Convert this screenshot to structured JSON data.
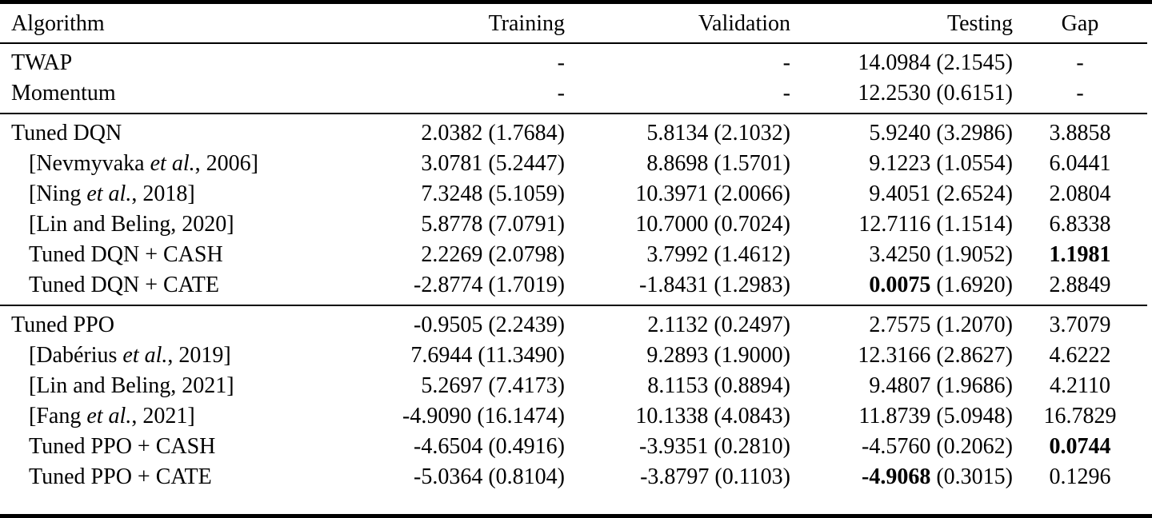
{
  "table": {
    "columns": [
      "Algorithm",
      "Training",
      "Validation",
      "Testing",
      "Gap"
    ],
    "italic_marker": "et al.",
    "sections": [
      {
        "name": "baselines",
        "rows": [
          {
            "label": "TWAP",
            "indent": false,
            "training": {
              "mean": "-"
            },
            "validation": {
              "mean": "-"
            },
            "testing": {
              "mean": "14.0984",
              "std": "2.1545"
            },
            "gap": {
              "value": "-"
            }
          },
          {
            "label": "Momentum",
            "indent": false,
            "training": {
              "mean": "-"
            },
            "validation": {
              "mean": "-"
            },
            "testing": {
              "mean": "12.2530",
              "std": "0.6151"
            },
            "gap": {
              "value": "-"
            }
          }
        ]
      },
      {
        "name": "dqn",
        "rows": [
          {
            "label": "Tuned DQN",
            "indent": false,
            "training": {
              "mean": "2.0382",
              "std": "1.7684"
            },
            "validation": {
              "mean": "5.8134",
              "std": "2.1032"
            },
            "testing": {
              "mean": "5.9240",
              "std": "3.2986"
            },
            "gap": {
              "value": "3.8858"
            }
          },
          {
            "label": "[Nevmyvaka et al., 2006]",
            "italic": true,
            "indent": true,
            "training": {
              "mean": "3.0781",
              "std": "5.2447"
            },
            "validation": {
              "mean": "8.8698",
              "std": "1.5701"
            },
            "testing": {
              "mean": "9.1223",
              "std": "1.0554"
            },
            "gap": {
              "value": "6.0441"
            }
          },
          {
            "label": "[Ning et al., 2018]",
            "italic": true,
            "indent": true,
            "training": {
              "mean": "7.3248",
              "std": "5.1059"
            },
            "validation": {
              "mean": "10.3971",
              "std": "2.0066"
            },
            "testing": {
              "mean": "9.4051",
              "std": "2.6524"
            },
            "gap": {
              "value": "2.0804"
            }
          },
          {
            "label": "[Lin and Beling, 2020]",
            "indent": true,
            "training": {
              "mean": "5.8778",
              "std": "7.0791"
            },
            "validation": {
              "mean": "10.7000",
              "std": "0.7024"
            },
            "testing": {
              "mean": "12.7116",
              "std": "1.1514"
            },
            "gap": {
              "value": "6.8338"
            }
          },
          {
            "label": "Tuned DQN + CASH",
            "indent": true,
            "training": {
              "mean": "2.2269",
              "std": "2.0798"
            },
            "validation": {
              "mean": "3.7992",
              "std": "1.4612"
            },
            "testing": {
              "mean": "3.4250",
              "std": "1.9052"
            },
            "gap": {
              "value": "1.1981",
              "bold": true
            }
          },
          {
            "label": "Tuned DQN + CATE",
            "indent": true,
            "training": {
              "mean": "-2.8774",
              "std": "1.7019"
            },
            "validation": {
              "mean": "-1.8431",
              "std": "1.2983"
            },
            "testing": {
              "mean": "0.0075",
              "std": "1.6920",
              "bold": true
            },
            "gap": {
              "value": "2.8849"
            }
          }
        ]
      },
      {
        "name": "ppo",
        "rows": [
          {
            "label": "Tuned PPO",
            "indent": false,
            "training": {
              "mean": "-0.9505",
              "std": "2.2439"
            },
            "validation": {
              "mean": "2.1132",
              "std": "0.2497"
            },
            "testing": {
              "mean": "2.7575",
              "std": "1.2070"
            },
            "gap": {
              "value": "3.7079"
            }
          },
          {
            "label": "[Dabérius et al., 2019]",
            "italic": true,
            "indent": true,
            "training": {
              "mean": "7.6944",
              "std": "11.3490"
            },
            "validation": {
              "mean": "9.2893",
              "std": "1.9000"
            },
            "testing": {
              "mean": "12.3166",
              "std": "2.8627"
            },
            "gap": {
              "value": "4.6222"
            }
          },
          {
            "label": "[Lin and Beling, 2021]",
            "indent": true,
            "training": {
              "mean": "5.2697",
              "std": "7.4173"
            },
            "validation": {
              "mean": "8.1153",
              "std": "0.8894"
            },
            "testing": {
              "mean": "9.4807",
              "std": "1.9686"
            },
            "gap": {
              "value": "4.2110"
            }
          },
          {
            "label": "[Fang et al., 2021]",
            "italic": true,
            "indent": true,
            "training": {
              "mean": "-4.9090",
              "std": "16.1474"
            },
            "validation": {
              "mean": "10.1338",
              "std": "4.0843"
            },
            "testing": {
              "mean": "11.8739",
              "std": "5.0948"
            },
            "gap": {
              "value": "16.7829"
            }
          },
          {
            "label": "Tuned PPO + CASH",
            "indent": true,
            "training": {
              "mean": "-4.6504",
              "std": "0.4916"
            },
            "validation": {
              "mean": "-3.9351",
              "std": "0.2810"
            },
            "testing": {
              "mean": "-4.5760",
              "std": "0.2062"
            },
            "gap": {
              "value": "0.0744",
              "bold": true
            }
          },
          {
            "label": "Tuned PPO + CATE",
            "indent": true,
            "training": {
              "mean": "-5.0364",
              "std": "0.8104"
            },
            "validation": {
              "mean": "-3.8797",
              "std": "0.1103"
            },
            "testing": {
              "mean": "-4.9068",
              "std": "0.3015",
              "bold": true
            },
            "gap": {
              "value": "0.1296"
            }
          }
        ]
      }
    ]
  }
}
